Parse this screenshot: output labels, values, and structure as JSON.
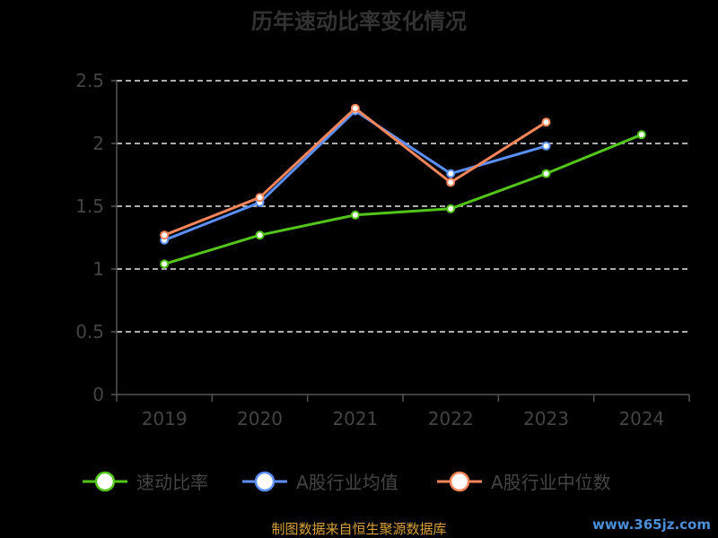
{
  "chart_data": {
    "type": "line",
    "title": "历年速动比率变化情况",
    "categories": [
      "2019",
      "2020",
      "2021",
      "2022",
      "2023",
      "2024"
    ],
    "ylim": [
      0,
      2.5
    ],
    "yticks": [
      "0",
      "0.5",
      "1",
      "1.5",
      "2",
      "2.5"
    ],
    "grid": "horizontal-dashed",
    "legend_position": "bottom",
    "series": [
      {
        "name": "速动比率",
        "color": "#52c41a",
        "values": [
          1.04,
          1.27,
          1.43,
          1.48,
          1.76,
          2.07
        ]
      },
      {
        "name": "A股行业均值",
        "color": "#5b8ff9",
        "values": [
          1.23,
          1.53,
          2.26,
          1.76,
          1.98,
          null
        ]
      },
      {
        "name": "A股行业中位数",
        "color": "#f6865a",
        "values": [
          1.27,
          1.57,
          2.28,
          1.69,
          2.17,
          null
        ]
      }
    ]
  },
  "footer": {
    "source": "制图数据来自恒生聚源数据库",
    "watermark": "www.365jz.com"
  }
}
